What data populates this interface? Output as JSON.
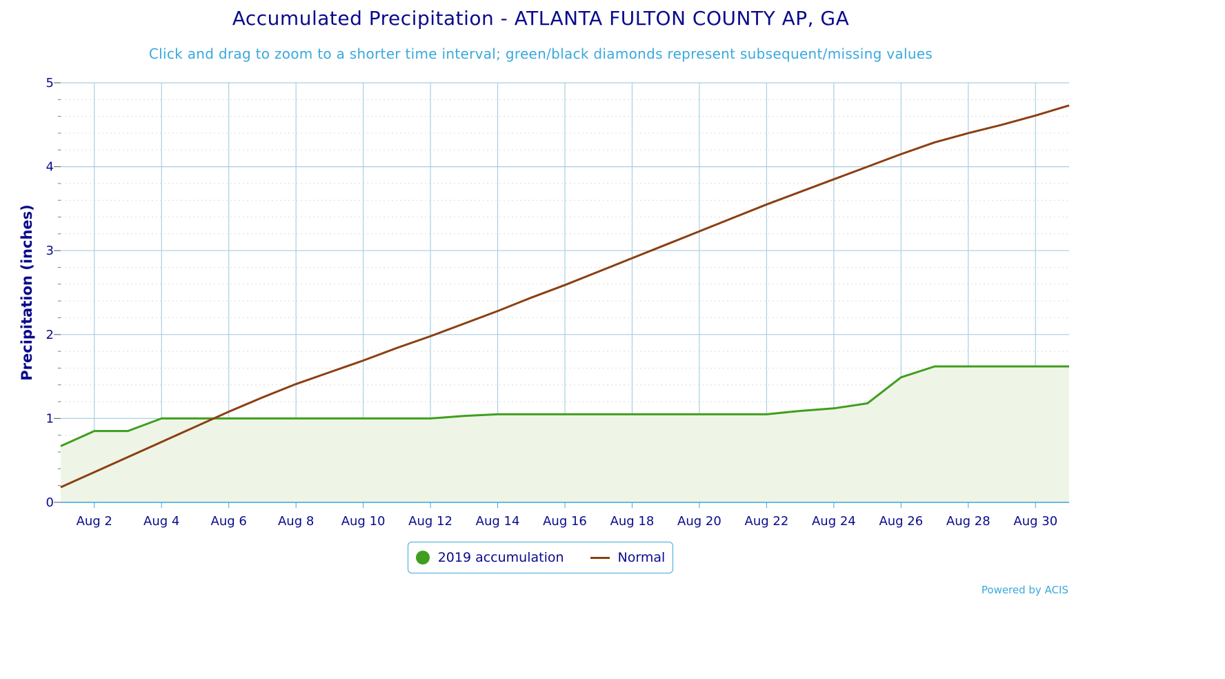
{
  "chart_data": {
    "type": "line",
    "title": "Accumulated Precipitation - ATLANTA FULTON COUNTY AP, GA",
    "subtitle": "Click and drag to zoom to a shorter time interval; green/black diamonds represent subsequent/missing values",
    "ylabel": "Precipitation (inches)",
    "xlabel": "",
    "ylim": [
      0,
      5
    ],
    "yticks": [
      "0",
      "1",
      "2",
      "3",
      "4",
      "5"
    ],
    "x_dates": [
      "Aug 1",
      "Aug 2",
      "Aug 3",
      "Aug 4",
      "Aug 5",
      "Aug 6",
      "Aug 7",
      "Aug 8",
      "Aug 9",
      "Aug 10",
      "Aug 11",
      "Aug 12",
      "Aug 13",
      "Aug 14",
      "Aug 15",
      "Aug 16",
      "Aug 17",
      "Aug 18",
      "Aug 19",
      "Aug 20",
      "Aug 21",
      "Aug 22",
      "Aug 23",
      "Aug 24",
      "Aug 25",
      "Aug 26",
      "Aug 27",
      "Aug 28",
      "Aug 29",
      "Aug 30",
      "Aug 31"
    ],
    "xtick_labels": [
      "Aug 2",
      "Aug 4",
      "Aug 6",
      "Aug 8",
      "Aug 10",
      "Aug 12",
      "Aug 14",
      "Aug 16",
      "Aug 18",
      "Aug 20",
      "Aug 22",
      "Aug 24",
      "Aug 26",
      "Aug 28",
      "Aug 30"
    ],
    "grid": true,
    "legend_position": "bottom-center",
    "series": [
      {
        "name": "2019 accumulation",
        "color": "#3f9e1e",
        "fill": "#eef5e6",
        "area": true,
        "values": [
          0.67,
          0.85,
          0.85,
          1.0,
          1.0,
          1.0,
          1.0,
          1.0,
          1.0,
          1.0,
          1.0,
          1.0,
          1.03,
          1.05,
          1.05,
          1.05,
          1.05,
          1.05,
          1.05,
          1.05,
          1.05,
          1.05,
          1.09,
          1.12,
          1.18,
          1.49,
          1.62,
          1.62,
          1.62,
          1.62,
          1.62
        ]
      },
      {
        "name": "Normal",
        "color": "#8b3f12",
        "area": false,
        "values": [
          0.18,
          0.36,
          0.54,
          0.72,
          0.9,
          1.08,
          1.25,
          1.41,
          1.55,
          1.69,
          1.84,
          1.98,
          2.13,
          2.28,
          2.44,
          2.59,
          2.75,
          2.91,
          3.07,
          3.23,
          3.39,
          3.55,
          3.7,
          3.85,
          4.0,
          4.15,
          4.29,
          4.4,
          4.5,
          4.61,
          4.73
        ]
      }
    ]
  },
  "credit": "Powered by ACIS",
  "colors": {
    "title": "#0a0a8c",
    "subtitle": "#3aa8dc",
    "grid_major": "#a8cfe0",
    "grid_minor": "#dcdcdc",
    "axis_text": "#0a0a8c"
  }
}
